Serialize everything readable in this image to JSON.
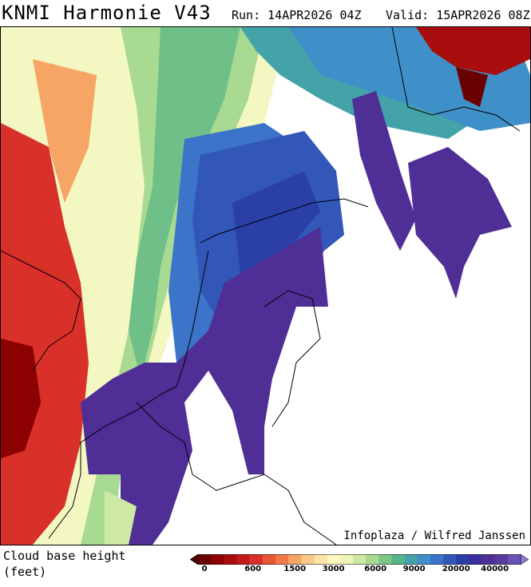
{
  "header": {
    "title": "KNMI Harmonie V43",
    "run": "Run: 14APR2026 04Z",
    "valid": "Valid: 15APR2026 08Z"
  },
  "map": {
    "credit": "Infoplaza / Wilfred Janssen",
    "variable_line1": "Cloud base height",
    "variable_line2": "(feet)"
  },
  "colorbar": {
    "colors": [
      "#6a0000",
      "#8b0000",
      "#a80e0e",
      "#c41a1a",
      "#d9302a",
      "#e85537",
      "#f07a45",
      "#f6a564",
      "#fbc98a",
      "#fde4a8",
      "#fff6c0",
      "#eef6b6",
      "#cde9a3",
      "#a8da92",
      "#7cc787",
      "#57b58a",
      "#43a3a8",
      "#3f8fc9",
      "#3b74c8",
      "#3257b8",
      "#2b3fa8",
      "#3a2f9e",
      "#4f2e96",
      "#5b3aa0",
      "#6a52b3"
    ],
    "ticks": [
      {
        "label": "0"
      },
      {
        "label": "600"
      },
      {
        "label": "1500"
      },
      {
        "label": "3000"
      },
      {
        "label": "6000"
      },
      {
        "label": "9000"
      },
      {
        "label": "20000"
      },
      {
        "label": "40000"
      }
    ]
  }
}
